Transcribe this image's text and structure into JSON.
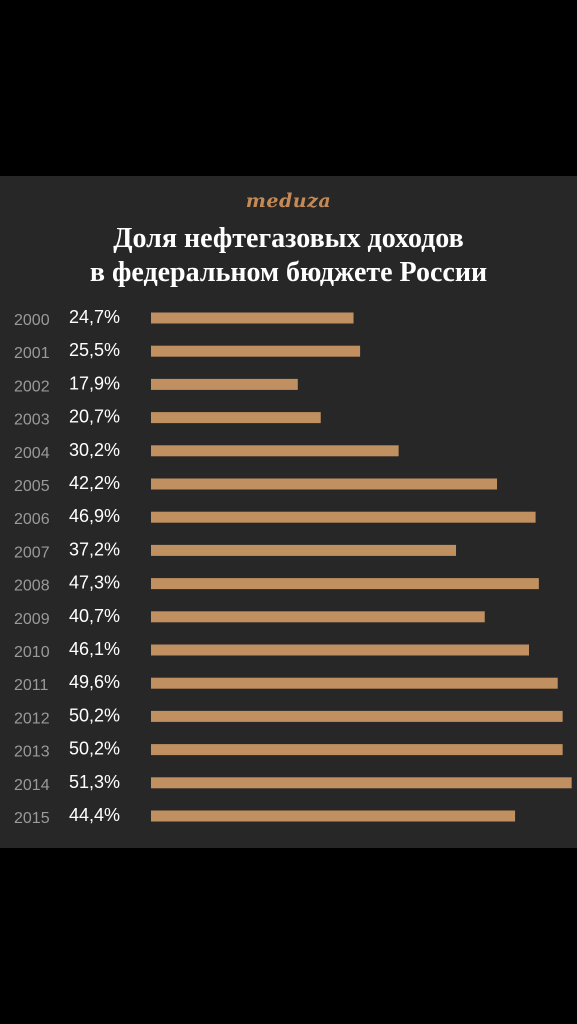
{
  "brand": {
    "logo_text": "meduza",
    "color": "#c48a56"
  },
  "chart_data": {
    "type": "bar",
    "orientation": "horizontal",
    "title_lines": [
      "Доля нефтегазовых доходов",
      "в федеральном бюджете России"
    ],
    "categories": [
      "2000",
      "2001",
      "2002",
      "2003",
      "2004",
      "2005",
      "2006",
      "2007",
      "2008",
      "2009",
      "2010",
      "2011",
      "2012",
      "2013",
      "2014",
      "2015"
    ],
    "values": [
      24.7,
      25.5,
      17.9,
      20.7,
      30.2,
      42.2,
      46.9,
      37.2,
      47.3,
      40.7,
      46.1,
      49.6,
      50.2,
      50.2,
      51.3,
      44.4
    ],
    "value_labels": [
      "24,7%",
      "25,5%",
      "17,9%",
      "20,7%",
      "30,2%",
      "42,2%",
      "46,9%",
      "37,2%",
      "47,3%",
      "40,7%",
      "46,1%",
      "49,6%",
      "50,2%",
      "50,2%",
      "51,3%",
      "44,4%"
    ],
    "unit": "%",
    "bar_color": "#c09060",
    "grid": false,
    "legend": "none"
  }
}
